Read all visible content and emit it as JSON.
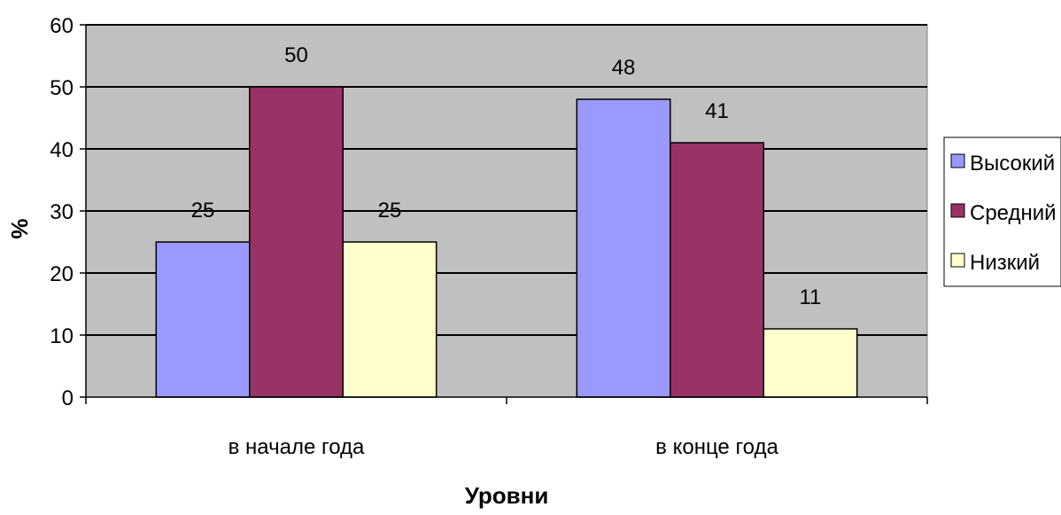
{
  "chart_data": {
    "type": "bar",
    "categories": [
      "в начале года",
      "в конце года"
    ],
    "series": [
      {
        "name": "Высокий",
        "values": [
          25,
          48
        ],
        "color": "#9999ff"
      },
      {
        "name": "Средний",
        "values": [
          50,
          41
        ],
        "color": "#993366"
      },
      {
        "name": "Низкий",
        "values": [
          25,
          11
        ],
        "color": "#ffffcc"
      }
    ],
    "data_labels": [
      [
        "25",
        "48"
      ],
      [
        "50",
        "41"
      ],
      [
        "25",
        "11"
      ]
    ],
    "yticks": [
      0,
      10,
      20,
      30,
      40,
      50,
      60
    ],
    "ylim": [
      0,
      60
    ],
    "xlabel": "Уровни",
    "ylabel": "%",
    "grid": true,
    "plot_background": "#c0c0c0",
    "legend_position": "right"
  }
}
